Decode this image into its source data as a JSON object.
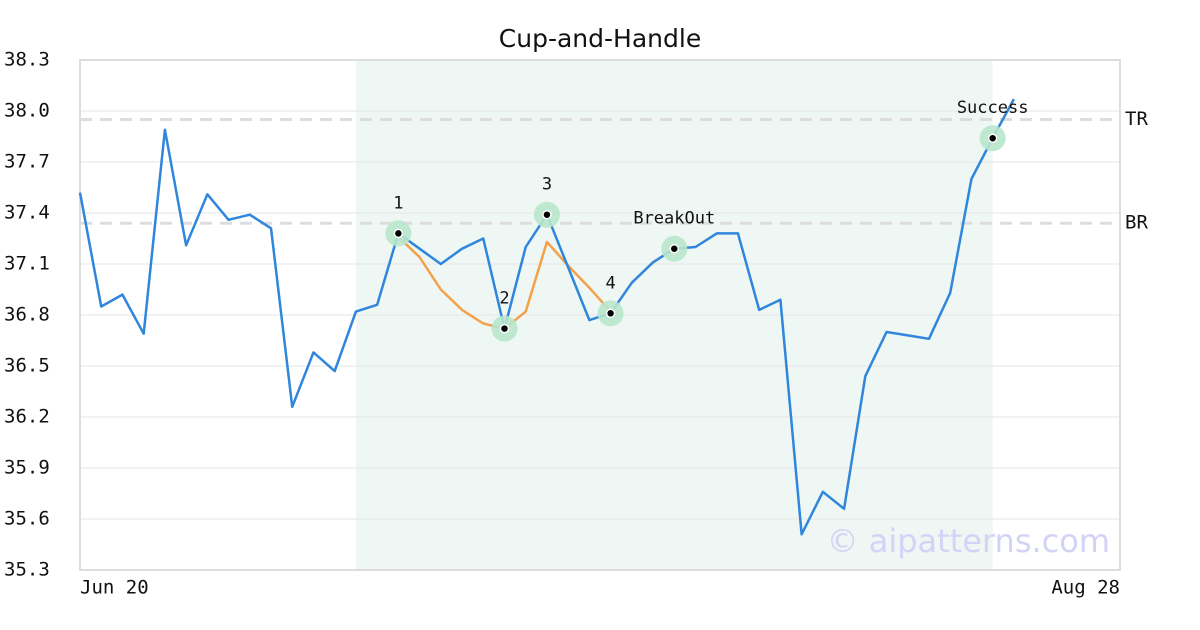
{
  "chart_data": {
    "type": "line",
    "title": "Cup-and-Handle",
    "categories": [
      "Jun 20",
      null,
      null,
      null,
      null,
      null,
      null,
      null,
      null,
      null,
      null,
      null,
      null,
      null,
      null,
      null,
      null,
      null,
      null,
      null,
      null,
      null,
      null,
      null,
      null,
      null,
      null,
      null,
      null,
      null,
      null,
      null,
      null,
      null,
      null,
      null,
      null,
      null,
      null,
      null,
      null,
      null,
      null,
      null,
      null,
      null,
      null,
      null,
      null,
      "Aug 28"
    ],
    "series": [
      {
        "name": "Price",
        "color": "#2f86dc",
        "values": [
          37.52,
          36.85,
          36.92,
          36.69,
          37.89,
          37.21,
          37.51,
          37.36,
          37.39,
          37.31,
          36.26,
          36.58,
          36.47,
          36.82,
          36.86,
          37.28,
          37.19,
          37.1,
          37.19,
          37.25,
          36.72,
          37.2,
          37.39,
          37.08,
          36.77,
          36.81,
          36.99,
          37.11,
          37.19,
          37.2,
          37.28,
          37.28,
          36.83,
          36.89,
          35.51,
          35.76,
          35.66,
          36.44,
          36.7,
          36.68,
          36.66,
          36.93,
          37.6,
          37.84,
          38.07,
          null,
          null,
          null,
          null,
          null
        ]
      },
      {
        "name": "Cup",
        "color": "#f5a04a",
        "values": [
          null,
          null,
          null,
          null,
          null,
          null,
          null,
          null,
          null,
          null,
          null,
          null,
          null,
          null,
          null,
          37.26,
          37.14,
          36.95,
          36.83,
          36.75,
          36.72,
          36.82,
          37.23,
          37.09,
          36.96,
          36.82,
          null,
          null,
          null,
          null,
          null,
          null,
          null,
          null,
          null,
          null,
          null,
          null,
          null,
          null,
          null,
          null,
          null,
          null,
          null,
          null,
          null,
          null,
          null,
          null
        ]
      }
    ],
    "ylim": [
      35.3,
      38.3
    ],
    "yticks": [
      35.3,
      35.6,
      35.9,
      36.2,
      36.5,
      36.8,
      37.1,
      37.4,
      37.7,
      {
        "value": 38,
        "label": "38.0"
      },
      38.3
    ],
    "grid": true,
    "highlight_range": [
      13,
      43
    ],
    "levels": [
      {
        "label": "TR",
        "value": 37.95
      },
      {
        "label": "BR",
        "value": 37.34
      }
    ],
    "annotations": [
      {
        "label": "1",
        "index": 15
      },
      {
        "label": "2",
        "index": 20
      },
      {
        "label": "3",
        "index": 22
      },
      {
        "label": "4",
        "index": 25
      },
      {
        "label": "BreakOut",
        "index": 28
      },
      {
        "label": "Success",
        "index": 43
      }
    ],
    "watermark": "© aipatterns.com"
  }
}
